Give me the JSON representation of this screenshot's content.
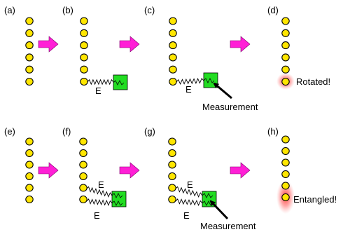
{
  "panels": {
    "a": "(a)",
    "b": "(b)",
    "c": "(c)",
    "d": "(d)",
    "e": "(e)",
    "f": "(f)",
    "g": "(g)",
    "h": "(h)"
  },
  "labels": {
    "coupling_b": "E",
    "coupling_c": "E",
    "coupling_f_top": "E",
    "coupling_f_bottom": "E",
    "coupling_g_top": "E",
    "coupling_g_bottom": "E",
    "measurement_c": "Measurement",
    "measurement_g": "Measurement",
    "result_d": "Rotated!",
    "result_h": "Entangled!"
  },
  "colors": {
    "atom_fill": "#ffe600",
    "arrow": "#ff1fd6",
    "box": "#22dd22",
    "glow": "#ff5555"
  }
}
